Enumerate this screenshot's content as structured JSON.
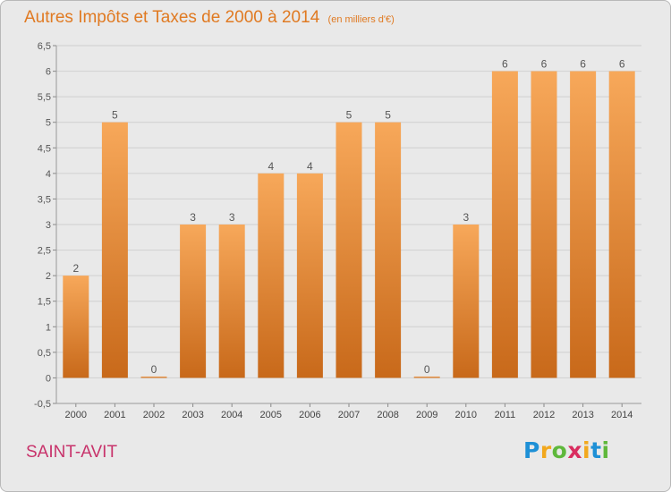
{
  "header": {
    "title": "Autres Impôts et Taxes de 2000 à 2014",
    "unit": "(en milliers d'€)"
  },
  "footer": {
    "commune": "SAINT-AVIT",
    "logo_letters": [
      "P",
      "r",
      "o",
      "x",
      "i",
      "t",
      "i"
    ],
    "logo_colors": [
      "#1e90d6",
      "#f2a81d",
      "#5fb83c",
      "#d92d5f",
      "#f2a81d",
      "#1e90d6",
      "#5fb83c"
    ]
  },
  "colors": {
    "bar_top": "#f7a85a",
    "bar_bottom": "#c8691a",
    "title": "#e07a22",
    "commune": "#c8336b",
    "grid": "#d0d0d0",
    "background": "#e9e9e9"
  },
  "chart_data": {
    "type": "bar",
    "categories": [
      "2000",
      "2001",
      "2002",
      "2003",
      "2004",
      "2005",
      "2006",
      "2007",
      "2008",
      "2009",
      "2010",
      "2011",
      "2012",
      "2013",
      "2014"
    ],
    "values": [
      2,
      5,
      0,
      3,
      3,
      4,
      4,
      5,
      5,
      0,
      3,
      6,
      6,
      6,
      6
    ],
    "data_labels": [
      "2",
      "5",
      "0",
      "3",
      "3",
      "4",
      "4",
      "5",
      "5",
      "0",
      "3",
      "6",
      "6",
      "6",
      "6"
    ],
    "y_ticks": [
      "-0,5",
      "0",
      "0,5",
      "1",
      "1,5",
      "2",
      "2,5",
      "3",
      "3,5",
      "4",
      "4,5",
      "5",
      "5,5",
      "6",
      "6,5"
    ],
    "ylim": [
      -0.5,
      6.5
    ],
    "grid": true,
    "legend": "none"
  }
}
